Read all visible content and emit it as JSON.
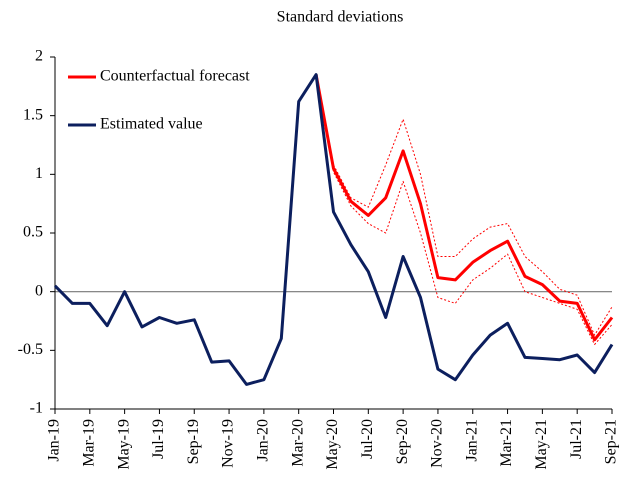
{
  "chart_data": {
    "type": "line",
    "title": "Standard deviations",
    "categories": [
      "Jan-19",
      null,
      "Mar-19",
      null,
      "May-19",
      null,
      "Jul-19",
      null,
      "Sep-19",
      null,
      "Nov-19",
      null,
      "Jan-20",
      null,
      "Mar-20",
      null,
      "May-20",
      null,
      "Jul-20",
      null,
      "Sep-20",
      null,
      "Nov-20",
      null,
      "Jan-21",
      null,
      "Mar-21",
      null,
      "May-21",
      null,
      "Jul-21",
      null,
      "Sep-21"
    ],
    "series": [
      {
        "name": "Counterfactual forecast",
        "color": "#ff0000",
        "width": 3,
        "values": [
          null,
          null,
          null,
          null,
          null,
          null,
          null,
          null,
          null,
          null,
          null,
          null,
          null,
          null,
          null,
          1.85,
          1.05,
          0.77,
          0.65,
          0.8,
          1.2,
          0.75,
          0.12,
          0.1,
          0.25,
          0.35,
          0.43,
          0.13,
          0.06,
          -0.08,
          -0.1,
          -0.41,
          -0.22
        ]
      },
      {
        "name": "Estimated value",
        "color": "#0c1f5e",
        "width": 3,
        "values": [
          0.05,
          -0.1,
          -0.1,
          -0.29,
          0.0,
          -0.3,
          -0.22,
          -0.27,
          -0.24,
          -0.6,
          -0.59,
          -0.79,
          -0.75,
          -0.4,
          1.62,
          1.85,
          0.68,
          0.4,
          0.17,
          -0.22,
          0.3,
          -0.05,
          -0.66,
          -0.75,
          -0.54,
          -0.37,
          -0.27,
          -0.56,
          -0.57,
          -0.58,
          -0.54,
          -0.69,
          -0.45
        ]
      },
      {
        "color": "#ff0000",
        "width": 1,
        "dash": true,
        "values": [
          null,
          null,
          null,
          null,
          null,
          null,
          null,
          null,
          null,
          null,
          null,
          null,
          null,
          null,
          null,
          1.85,
          1.08,
          0.8,
          0.72,
          1.08,
          1.47,
          1.0,
          0.3,
          0.3,
          0.45,
          0.55,
          0.58,
          0.3,
          0.17,
          0.02,
          -0.03,
          -0.37,
          -0.13
        ]
      },
      {
        "color": "#ff0000",
        "width": 1,
        "dash": true,
        "values": [
          null,
          null,
          null,
          null,
          null,
          null,
          null,
          null,
          null,
          null,
          null,
          null,
          null,
          null,
          null,
          1.85,
          1.02,
          0.73,
          0.58,
          0.5,
          0.94,
          0.5,
          -0.05,
          -0.1,
          0.1,
          0.2,
          0.32,
          0.0,
          -0.05,
          -0.1,
          -0.15,
          -0.45,
          -0.28
        ]
      }
    ],
    "ylim": [
      -1,
      2
    ],
    "yticks": [
      -1,
      -0.5,
      0,
      0.5,
      1,
      1.5,
      2
    ],
    "zero_line": true,
    "legend": "top-left"
  }
}
